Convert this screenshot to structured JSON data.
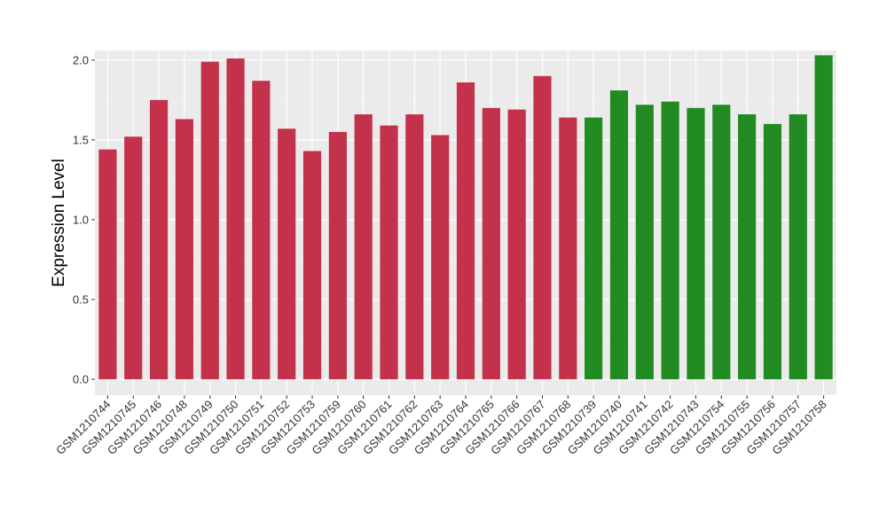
{
  "chart_data": {
    "type": "bar",
    "ylabel": "Expression Level",
    "xlabel": "",
    "title": "",
    "ylim": [
      0,
      2.06
    ],
    "yticks": [
      0.0,
      0.5,
      1.0,
      1.5,
      2.0
    ],
    "ytick_labels": [
      "0.0",
      "0.5",
      "1.0",
      "1.5",
      "2.0"
    ],
    "grid": true,
    "panel_background": "#ebebeb",
    "categories": [
      "GSM1210744",
      "GSM1210745",
      "GSM1210746",
      "GSM1210748",
      "GSM1210749",
      "GSM1210750",
      "GSM1210751",
      "GSM1210752",
      "GSM1210753",
      "GSM1210759",
      "GSM1210760",
      "GSM1210761",
      "GSM1210762",
      "GSM1210763",
      "GSM1210764",
      "GSM1210765",
      "GSM1210766",
      "GSM1210767",
      "GSM1210768",
      "GSM1210739",
      "GSM1210740",
      "GSM1210741",
      "GSM1210742",
      "GSM1210743",
      "GSM1210754",
      "GSM1210755",
      "GSM1210756",
      "GSM1210757",
      "GSM1210758"
    ],
    "values": [
      1.44,
      1.52,
      1.75,
      1.63,
      1.99,
      2.01,
      1.87,
      1.57,
      1.43,
      1.55,
      1.66,
      1.59,
      1.66,
      1.53,
      1.86,
      1.7,
      1.69,
      1.9,
      1.64,
      1.64,
      1.81,
      1.72,
      1.74,
      1.7,
      1.72,
      1.66,
      1.6,
      1.66,
      2.03
    ],
    "colors": [
      "#c3314b",
      "#c3314b",
      "#c3314b",
      "#c3314b",
      "#c3314b",
      "#c3314b",
      "#c3314b",
      "#c3314b",
      "#c3314b",
      "#c3314b",
      "#c3314b",
      "#c3314b",
      "#c3314b",
      "#c3314b",
      "#c3314b",
      "#c3314b",
      "#c3314b",
      "#c3314b",
      "#c3314b",
      "#228b22",
      "#228b22",
      "#228b22",
      "#228b22",
      "#228b22",
      "#228b22",
      "#228b22",
      "#228b22",
      "#228b22",
      "#228b22"
    ]
  }
}
